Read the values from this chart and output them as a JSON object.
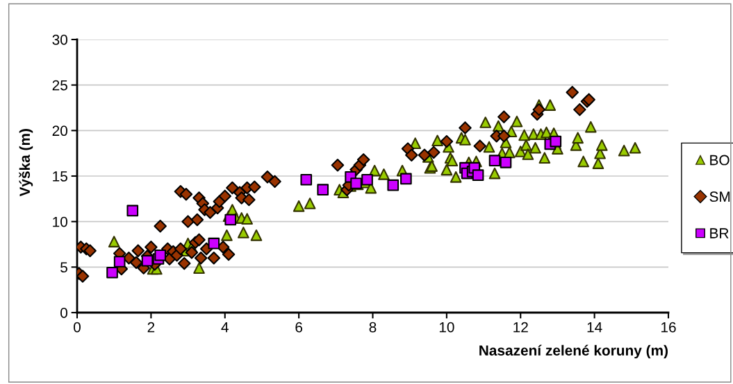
{
  "chart_data": {
    "type": "scatter",
    "xlabel": "Nasazení zelené koruny (m)",
    "ylabel": "Výška (m)",
    "xlim": [
      0,
      16
    ],
    "xticks": [
      0,
      2,
      4,
      6,
      8,
      10,
      12,
      14,
      16
    ],
    "ylim": [
      0,
      30
    ],
    "yticks": [
      0,
      5,
      10,
      15,
      20,
      25,
      30
    ],
    "grid": "y",
    "legend": "right",
    "series": [
      {
        "name": "BO",
        "color": "#99cc00",
        "marker": "triangle",
        "x": [
          1.0,
          2.05,
          2.15,
          2.9,
          3.0,
          3.1,
          3.3,
          4.05,
          4.1,
          4.2,
          4.3,
          4.45,
          4.5,
          4.6,
          4.85,
          6.0,
          6.3,
          7.1,
          7.2,
          7.4,
          7.6,
          7.8,
          7.95,
          8.05,
          8.3,
          8.8,
          9.15,
          9.5,
          9.55,
          9.6,
          9.75,
          10.0,
          10.05,
          10.1,
          10.15,
          10.25,
          10.4,
          10.5,
          10.6,
          10.8,
          11.05,
          11.15,
          11.3,
          11.4,
          11.5,
          11.6,
          11.7,
          11.75,
          11.9,
          12.0,
          12.1,
          12.15,
          12.2,
          12.35,
          12.4,
          12.5,
          12.55,
          12.65,
          12.7,
          12.8,
          12.9,
          12.95,
          13.0,
          13.5,
          13.55,
          13.7,
          13.9,
          14.1,
          14.15,
          14.2,
          14.8,
          15.1
        ],
        "values": [
          7.8,
          4.8,
          4.8,
          6.8,
          7.6,
          7.2,
          4.9,
          8.5,
          10.6,
          11.3,
          10.4,
          10.4,
          8.8,
          10.3,
          8.5,
          11.7,
          12.0,
          13.5,
          13.2,
          13.9,
          14.1,
          14.3,
          13.7,
          15.6,
          15.2,
          15.6,
          18.6,
          17.1,
          15.9,
          16.1,
          18.9,
          15.7,
          18.2,
          17.0,
          16.7,
          14.9,
          19.2,
          19.0,
          16.5,
          16.6,
          20.9,
          18.2,
          15.3,
          20.5,
          17.5,
          18.7,
          17.6,
          19.9,
          21.0,
          17.7,
          19.5,
          18.4,
          17.4,
          19.6,
          18.1,
          22.8,
          19.6,
          17.0,
          19.8,
          22.8,
          19.7,
          18.5,
          18.0,
          18.4,
          19.2,
          16.6,
          20.4,
          16.4,
          17.5,
          18.4,
          17.8,
          18.1
        ]
      },
      {
        "name": "SM",
        "color": "#993300",
        "marker": "diamond",
        "x": [
          0.05,
          0.15,
          0.1,
          0.25,
          0.35,
          1.15,
          1.2,
          1.4,
          1.6,
          1.65,
          1.8,
          1.9,
          2.0,
          2.1,
          2.25,
          2.45,
          2.5,
          2.6,
          2.7,
          2.8,
          2.8,
          2.9,
          2.95,
          3.0,
          3.1,
          3.2,
          3.25,
          3.3,
          3.3,
          3.35,
          3.4,
          3.45,
          3.5,
          3.6,
          3.7,
          3.8,
          3.85,
          3.95,
          4.0,
          4.1,
          4.2,
          4.4,
          4.45,
          4.6,
          4.65,
          4.8,
          5.15,
          5.35,
          7.05,
          7.3,
          7.35,
          7.55,
          7.65,
          7.75,
          8.95,
          9.05,
          9.4,
          9.65,
          10.0,
          10.5,
          10.9,
          11.35,
          11.55,
          11.55,
          12.45,
          12.5,
          13.4,
          13.6,
          13.8,
          13.85
        ],
        "values": [
          4.3,
          4.0,
          7.2,
          7.0,
          6.8,
          6.5,
          4.8,
          6.0,
          5.5,
          6.8,
          4.9,
          6.2,
          7.2,
          5.3,
          9.5,
          7.0,
          5.9,
          6.7,
          6.3,
          7.0,
          13.3,
          5.4,
          13.0,
          10.0,
          6.6,
          7.7,
          10.2,
          12.6,
          8.0,
          6.0,
          12.0,
          11.3,
          7.0,
          11.0,
          6.0,
          11.5,
          12.2,
          7.2,
          12.8,
          6.4,
          13.7,
          13.2,
          12.6,
          13.7,
          12.4,
          13.8,
          14.9,
          14.4,
          16.2,
          13.5,
          14.0,
          15.7,
          16.2,
          16.8,
          18.0,
          17.3,
          17.3,
          17.6,
          18.8,
          20.3,
          18.3,
          19.4,
          21.5,
          19.4,
          21.8,
          22.3,
          24.2,
          22.3,
          23.2,
          23.4
        ]
      },
      {
        "name": "BR",
        "color": "#cc00ff",
        "marker": "square",
        "x": [
          0.95,
          1.15,
          1.5,
          1.9,
          2.2,
          2.25,
          3.7,
          4.15,
          6.2,
          6.65,
          7.4,
          7.55,
          7.85,
          8.55,
          8.9,
          10.5,
          10.55,
          10.7,
          10.75,
          10.85,
          11.3,
          11.6,
          12.8,
          12.95
        ],
        "values": [
          4.4,
          5.6,
          11.2,
          5.7,
          5.9,
          6.3,
          7.6,
          10.2,
          14.6,
          13.5,
          14.9,
          14.2,
          14.6,
          14.0,
          14.7,
          15.9,
          15.3,
          15.5,
          15.9,
          15.1,
          16.7,
          16.5,
          18.5,
          18.8
        ]
      }
    ]
  }
}
